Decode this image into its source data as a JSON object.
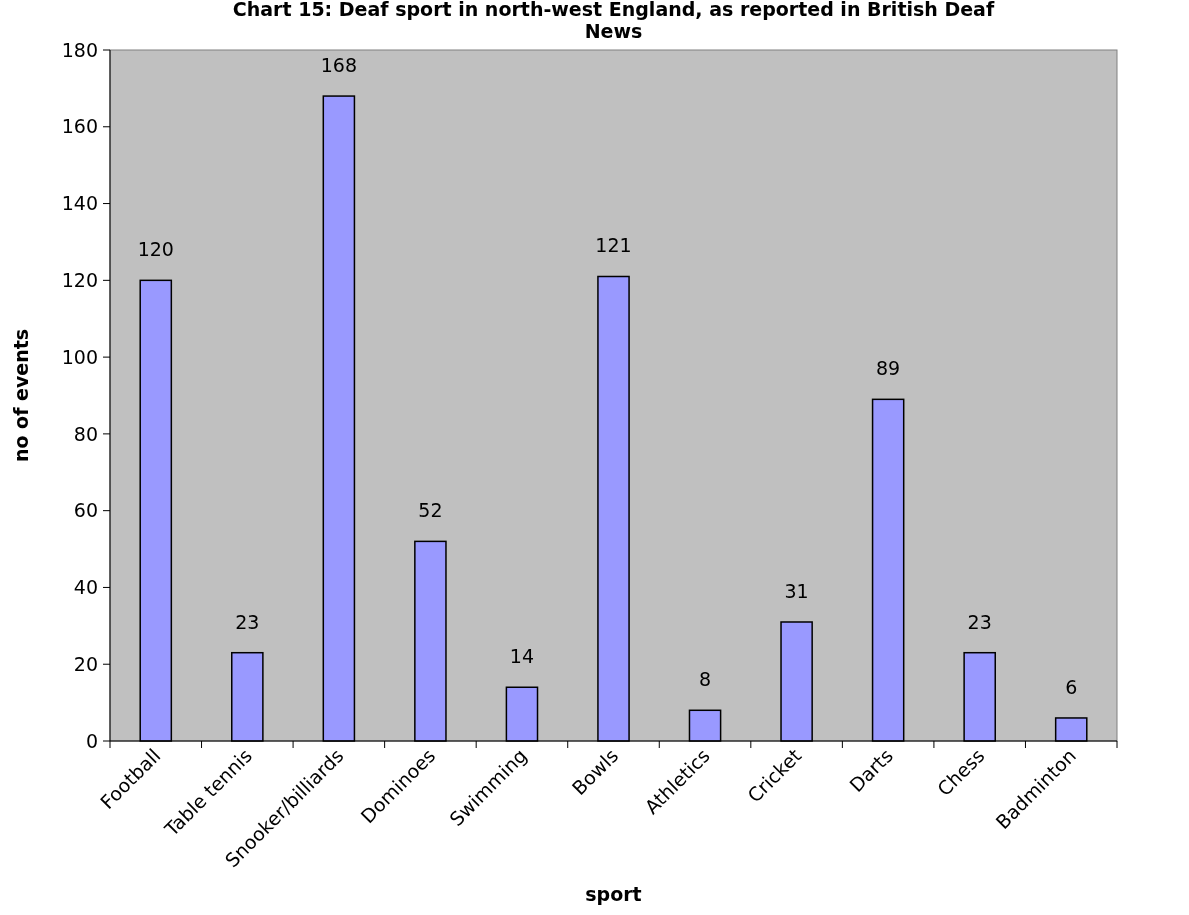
{
  "chart_data": {
    "type": "bar",
    "title": "Chart 15: Deaf sport in north-west England, as reported in British Deaf News",
    "xlabel": "sport",
    "ylabel": "no of events",
    "categories": [
      "Football",
      "Table tennis",
      "Snooker/billiards",
      "Dominoes",
      "Swimming",
      "Bowls",
      "Athletics",
      "Cricket",
      "Darts",
      "Chess",
      "Badminton"
    ],
    "values": [
      120,
      23,
      168,
      52,
      14,
      121,
      8,
      31,
      89,
      23,
      6
    ],
    "color": "#9999ff",
    "ylim": [
      0,
      180
    ],
    "yticks": [
      0,
      20,
      40,
      60,
      80,
      100,
      120,
      140,
      160,
      180
    ],
    "grid": false,
    "data_labels": true
  }
}
